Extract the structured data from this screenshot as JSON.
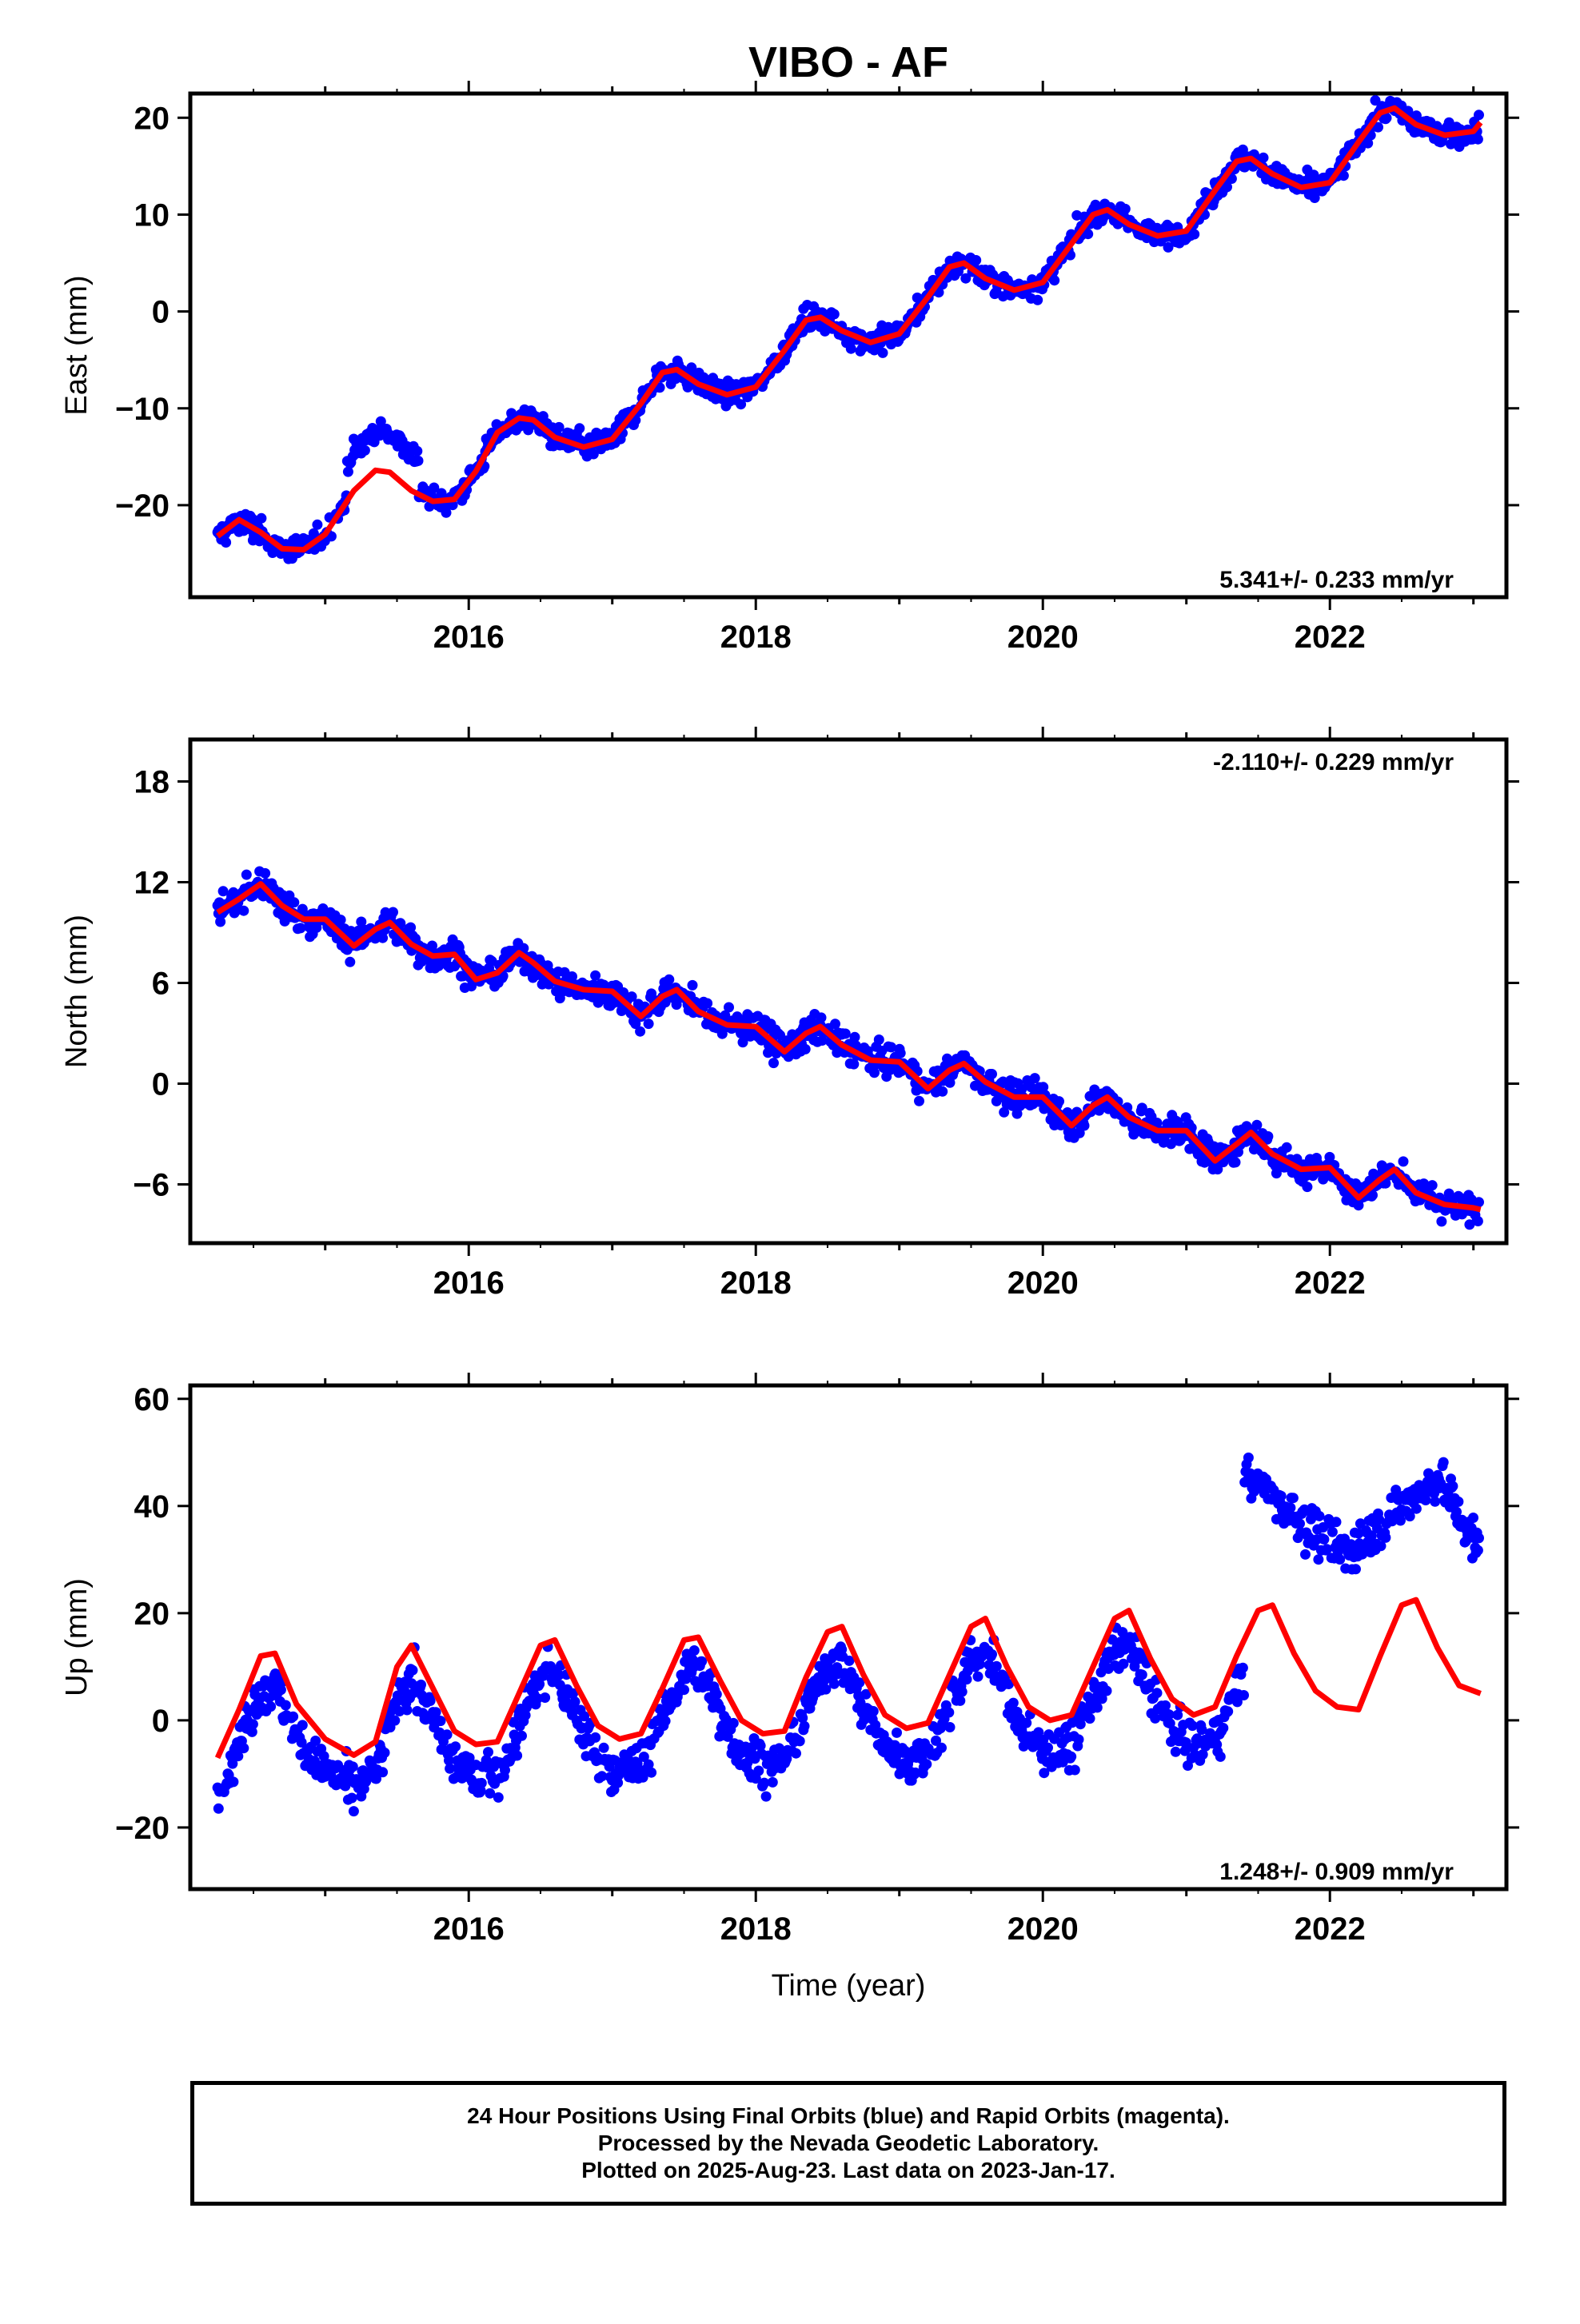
{
  "page": {
    "title": "VIBO - AF",
    "xlabel": "Time (year)"
  },
  "footer": {
    "line1": "24 Hour Positions Using Final Orbits (blue) and Rapid Orbits (magenta).",
    "line2": "Processed by the Nevada Geodetic Laboratory.",
    "line3": "Plotted on 2025-Aug-23. Last data on 2023-Jan-17."
  },
  "colors": {
    "points": "#0000ff",
    "model": "#ff0000",
    "frame": "#000000"
  },
  "chart_data": [
    {
      "type": "scatter",
      "component": "east",
      "ylabel": "East (mm)",
      "rate_label": "5.341+/- 0.233 mm/yr",
      "rate_position": "bottom-right",
      "xlim": [
        2014.06,
        2023.23
      ],
      "ylim": [
        -29.5,
        22.5
      ],
      "x_ticks": [
        "2016",
        "2018",
        "2020",
        "2022"
      ],
      "y_ticks": [
        "−20",
        "−10",
        "0",
        "10",
        "20"
      ],
      "y_tick_values": [
        -20,
        -10,
        0,
        10,
        20
      ],
      "grid": false,
      "series": [
        {
          "kind": "points",
          "values_summary": "daily positions, blue dots"
        },
        {
          "kind": "line",
          "x": [
            2014.25,
            2014.4,
            2014.55,
            2014.7,
            2014.85,
            2015.0,
            2015.2,
            2015.35,
            2015.45,
            2015.6,
            2015.75,
            2015.9,
            2016.05,
            2016.2,
            2016.35,
            2016.45,
            2016.6,
            2016.8,
            2017.0,
            2017.2,
            2017.35,
            2017.45,
            2017.6,
            2017.8,
            2018.0,
            2018.2,
            2018.35,
            2018.45,
            2018.6,
            2018.8,
            2019.0,
            2019.2,
            2019.35,
            2019.45,
            2019.6,
            2019.8,
            2020.0,
            2020.2,
            2020.35,
            2020.45,
            2020.6,
            2020.8,
            2021.0,
            2021.2,
            2021.35,
            2021.45,
            2021.6,
            2021.8,
            2022.0,
            2022.2,
            2022.35,
            2022.45,
            2022.6,
            2022.8,
            2023.0,
            2023.05
          ],
          "y": [
            -23.2,
            -21.5,
            -22.8,
            -24.5,
            -24.6,
            -23.0,
            -18.5,
            -16.4,
            -16.6,
            -18.5,
            -19.6,
            -19.4,
            -16.5,
            -12.5,
            -11.0,
            -11.2,
            -13.0,
            -14.0,
            -13.2,
            -9.5,
            -6.3,
            -6.0,
            -7.5,
            -8.6,
            -7.8,
            -4.0,
            -0.9,
            -0.6,
            -2.0,
            -3.2,
            -2.3,
            1.5,
            4.6,
            5.0,
            3.4,
            2.2,
            3.0,
            7.0,
            10.0,
            10.5,
            9.0,
            7.8,
            8.3,
            12.5,
            15.5,
            15.8,
            14.2,
            12.8,
            13.3,
            17.5,
            20.5,
            21.0,
            19.3,
            18.2,
            18.6,
            19.5
          ]
        }
      ]
    },
    {
      "type": "scatter",
      "component": "north",
      "ylabel": "North (mm)",
      "rate_label": "-2.110+/- 0.229 mm/yr",
      "rate_position": "top-right",
      "xlim": [
        2014.06,
        2023.23
      ],
      "ylim": [
        -9.5,
        20.5
      ],
      "x_ticks": [
        "2016",
        "2018",
        "2020",
        "2022"
      ],
      "y_ticks": [
        "18",
        "12",
        "6",
        "0",
        "−6"
      ],
      "y_tick_values": [
        18,
        12,
        6,
        0,
        -6
      ],
      "grid": false,
      "series": [
        {
          "kind": "points",
          "values_summary": "daily positions, blue dots"
        },
        {
          "kind": "line",
          "x": [
            2014.25,
            2014.4,
            2014.55,
            2014.7,
            2014.85,
            2015.0,
            2015.2,
            2015.35,
            2015.45,
            2015.6,
            2015.75,
            2015.9,
            2016.05,
            2016.2,
            2016.35,
            2016.45,
            2016.6,
            2016.8,
            2017.0,
            2017.2,
            2017.35,
            2017.45,
            2017.6,
            2017.8,
            2018.0,
            2018.2,
            2018.35,
            2018.45,
            2018.6,
            2018.8,
            2019.0,
            2019.2,
            2019.35,
            2019.45,
            2019.6,
            2019.8,
            2020.0,
            2020.2,
            2020.35,
            2020.45,
            2020.6,
            2020.8,
            2021.0,
            2021.2,
            2021.35,
            2021.45,
            2021.6,
            2021.8,
            2022.0,
            2022.2,
            2022.35,
            2022.45,
            2022.6,
            2022.8,
            2023.0,
            2023.05
          ],
          "y": [
            10.2,
            11.0,
            11.9,
            10.6,
            9.8,
            9.8,
            8.2,
            9.2,
            9.6,
            8.3,
            7.6,
            7.7,
            6.2,
            6.6,
            7.8,
            7.2,
            6.1,
            5.6,
            5.5,
            4.0,
            5.2,
            5.6,
            4.3,
            3.5,
            3.4,
            1.9,
            3.0,
            3.4,
            2.3,
            1.4,
            1.3,
            -0.3,
            0.8,
            1.2,
            0.1,
            -0.8,
            -0.8,
            -2.5,
            -1.3,
            -0.8,
            -2.0,
            -2.8,
            -2.8,
            -4.6,
            -3.6,
            -2.9,
            -4.2,
            -5.1,
            -5.0,
            -6.8,
            -5.7,
            -5.1,
            -6.5,
            -7.2,
            -7.4,
            -7.5
          ]
        }
      ]
    },
    {
      "type": "scatter",
      "component": "up",
      "ylabel": "Up (mm)",
      "rate_label": "1.248+/- 0.909 mm/yr",
      "rate_position": "bottom-right",
      "xlim": [
        2014.06,
        2023.23
      ],
      "ylim": [
        -31.5,
        62.5
      ],
      "x_ticks": [
        "2016",
        "2018",
        "2020",
        "2022"
      ],
      "y_ticks": [
        "60",
        "40",
        "20",
        "0",
        "−20"
      ],
      "y_tick_values": [
        60,
        40,
        20,
        0,
        -20
      ],
      "grid": false,
      "series": [
        {
          "kind": "points",
          "values_summary": "daily positions, blue dots"
        },
        {
          "kind": "line",
          "x": [
            2014.25,
            2014.4,
            2014.55,
            2014.65,
            2014.8,
            2015.0,
            2015.2,
            2015.35,
            2015.5,
            2015.6,
            2015.75,
            2015.9,
            2016.05,
            2016.2,
            2016.35,
            2016.5,
            2016.6,
            2016.75,
            2016.9,
            2017.05,
            2017.2,
            2017.35,
            2017.5,
            2017.6,
            2017.75,
            2017.9,
            2018.05,
            2018.2,
            2018.35,
            2018.5,
            2018.6,
            2018.75,
            2018.9,
            2019.05,
            2019.2,
            2019.35,
            2019.5,
            2019.6,
            2019.75,
            2019.9,
            2020.05,
            2020.2,
            2020.35,
            2020.5,
            2020.6,
            2020.75,
            2020.9,
            2021.05,
            2021.2,
            2021.35,
            2021.5,
            2021.6,
            2021.75,
            2021.9,
            2022.05,
            2022.2,
            2022.35,
            2022.5,
            2022.6,
            2022.75,
            2022.9,
            2023.05
          ],
          "y": [
            -7.0,
            2.0,
            12.0,
            12.5,
            3.0,
            -3.5,
            -6.5,
            -4.0,
            10.0,
            14.0,
            6.0,
            -2.0,
            -4.5,
            -4.0,
            5.0,
            14.0,
            15.0,
            6.5,
            -1.0,
            -3.5,
            -2.5,
            6.0,
            15.0,
            15.5,
            7.5,
            0.0,
            -2.5,
            -2.0,
            8.0,
            16.5,
            17.5,
            8.5,
            1.0,
            -1.5,
            -0.5,
            8.5,
            17.5,
            19.0,
            10.0,
            2.5,
            0.0,
            1.0,
            10.0,
            19.0,
            20.5,
            11.5,
            4.0,
            1.0,
            2.5,
            12.0,
            20.5,
            21.5,
            12.5,
            5.5,
            2.5,
            2.0,
            12.0,
            21.5,
            22.5,
            13.5,
            6.5,
            5.0
          ]
        }
      ]
    }
  ]
}
